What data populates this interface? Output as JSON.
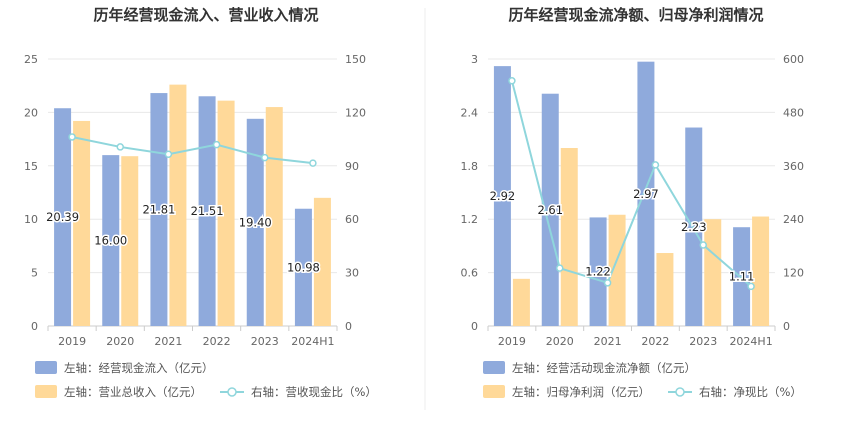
{
  "chart_data": [
    {
      "type": "bar",
      "title": "历年经营现金流入、营业收入情况",
      "categories": [
        "2019",
        "2020",
        "2021",
        "2022",
        "2023",
        "2024H1"
      ],
      "ylim_left": [
        0,
        25
      ],
      "yticks_left": [
        "0",
        "5",
        "10",
        "15",
        "20",
        "25"
      ],
      "ylim_right": [
        0,
        150
      ],
      "yticks_right": [
        "0",
        "30",
        "60",
        "90",
        "120",
        "150"
      ],
      "grid": true,
      "legend_position": "bottom",
      "series": [
        {
          "name": "左轴：经营现金流入（亿元）",
          "type": "bar",
          "axis": "left",
          "color": "#8faadc",
          "values": [
            20.39,
            16.0,
            21.81,
            21.51,
            19.4,
            10.98
          ],
          "labels": [
            "20.39",
            "16.00",
            "21.81",
            "21.51",
            "19.40",
            "10.98"
          ]
        },
        {
          "name": "左轴：营业总收入（亿元）",
          "type": "bar",
          "axis": "left",
          "color": "#ffd999",
          "values": [
            19.2,
            15.9,
            22.6,
            21.1,
            20.5,
            12.0
          ]
        },
        {
          "name": "右轴：营收现金比（%）",
          "type": "line",
          "axis": "right",
          "color": "#8fd6dc",
          "values": [
            106.2,
            100.6,
            96.5,
            101.9,
            94.6,
            91.5
          ]
        }
      ]
    },
    {
      "type": "bar",
      "title": "历年经营现金流净额、归母净利润情况",
      "categories": [
        "2019",
        "2020",
        "2021",
        "2022",
        "2023",
        "2024H1"
      ],
      "ylim_left": [
        0,
        3
      ],
      "yticks_left": [
        "0",
        "0.6",
        "1.2",
        "1.8",
        "2.4",
        "3"
      ],
      "ylim_right": [
        0,
        600
      ],
      "yticks_right": [
        "0",
        "120",
        "240",
        "360",
        "480",
        "600"
      ],
      "grid": true,
      "legend_position": "bottom",
      "series": [
        {
          "name": "左轴：经营活动现金流净额（亿元）",
          "type": "bar",
          "axis": "left",
          "color": "#8faadc",
          "values": [
            2.92,
            2.61,
            1.22,
            2.97,
            2.23,
            1.11
          ],
          "labels": [
            "2.92",
            "2.61",
            "1.22",
            "2.97",
            "2.23",
            "1.11"
          ]
        },
        {
          "name": "左轴：归母净利润（亿元）",
          "type": "bar",
          "axis": "left",
          "color": "#ffd999",
          "values": [
            0.53,
            2.0,
            1.25,
            0.82,
            1.2,
            1.23
          ]
        },
        {
          "name": "右轴：净现比（%）",
          "type": "line",
          "axis": "right",
          "color": "#8fd6dc",
          "values": [
            551,
            130,
            97,
            362,
            182,
            89
          ]
        }
      ]
    }
  ]
}
